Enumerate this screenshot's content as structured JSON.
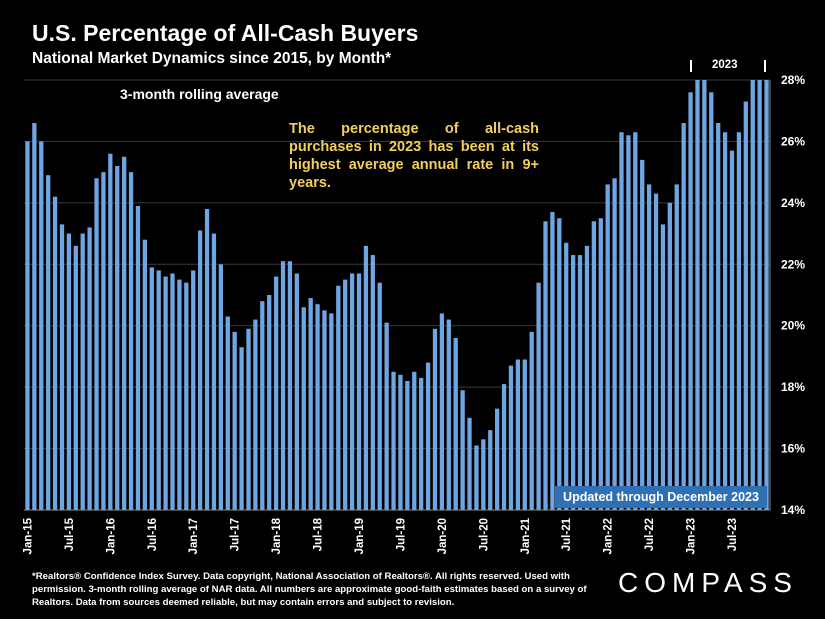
{
  "header": {
    "title": "U.S. Percentage of All-Cash Buyers",
    "subtitle": "National Market Dynamics since 2015, by Month*"
  },
  "annotations": {
    "rolling_note": "3-month rolling average",
    "callout": "The percentage of all-cash purchases in 2023 has been at its highest average annual rate in 9+ years.",
    "year_marker": "2023",
    "updated": "Updated through December 2023"
  },
  "footer": {
    "footnote": "*Realtors® Confidence Index Survey. Data copyright, National Association of Realtors®. All rights reserved. Used with permission. 3-month rolling average of NAR data. All numbers are approximate good-faith estimates based on a survey of Realtors. Data from sources deemed reliable, but may contain errors and subject to revision.",
    "logo": "COMPASS"
  },
  "colors": {
    "background": "#000000",
    "bar": "#6ea5e3",
    "callout": "#f2cf5b",
    "update_box": "#2f6fb4",
    "grid": "#3a3a3a"
  },
  "chart_data": {
    "type": "bar",
    "title": "U.S. Percentage of All-Cash Buyers",
    "ylim": [
      14,
      28
    ],
    "y_ticks": [
      "14%",
      "16%",
      "18%",
      "20%",
      "22%",
      "24%",
      "26%",
      "28%"
    ],
    "y_axis_side": "right",
    "grid": true,
    "x_tick_labels": [
      "Jan-15",
      "Jul-15",
      "Jan-16",
      "Jul-16",
      "Jan-17",
      "Jul-17",
      "Jan-18",
      "Jul-18",
      "Jan-19",
      "Jul-19",
      "Jan-20",
      "Jul-20",
      "Jan-21",
      "Jul-21",
      "Jan-22",
      "Jul-22",
      "Jan-23",
      "Jul-23"
    ],
    "x_start": "Jan-15",
    "x_end": "Dec-23",
    "values": [
      26.0,
      26.6,
      26.0,
      24.9,
      24.2,
      23.3,
      23.0,
      22.6,
      23.0,
      23.2,
      24.8,
      25.0,
      25.6,
      25.2,
      25.5,
      25.0,
      23.9,
      22.8,
      21.9,
      21.8,
      21.6,
      21.7,
      21.5,
      21.4,
      21.8,
      23.1,
      23.8,
      23.0,
      22.0,
      20.3,
      19.8,
      19.3,
      19.9,
      20.2,
      20.8,
      21.0,
      21.6,
      22.1,
      22.1,
      21.7,
      20.6,
      20.9,
      20.7,
      20.5,
      20.4,
      21.3,
      21.5,
      21.7,
      21.7,
      22.6,
      22.3,
      21.4,
      20.1,
      18.5,
      18.4,
      18.2,
      18.5,
      18.3,
      18.8,
      19.9,
      20.4,
      20.2,
      19.6,
      17.9,
      17.0,
      16.1,
      16.3,
      16.6,
      17.3,
      18.1,
      18.7,
      18.9,
      18.9,
      19.8,
      21.4,
      23.4,
      23.7,
      23.5,
      22.7,
      22.3,
      22.3,
      22.6,
      23.4,
      23.5,
      24.6,
      24.8,
      26.3,
      26.2,
      26.3,
      25.4,
      24.6,
      24.3,
      23.3,
      24.0,
      24.6,
      26.6,
      27.6,
      28.0,
      28.0,
      27.6,
      26.6,
      26.3,
      25.7,
      26.3,
      27.3,
      28.0,
      28.0,
      28.0
    ]
  }
}
